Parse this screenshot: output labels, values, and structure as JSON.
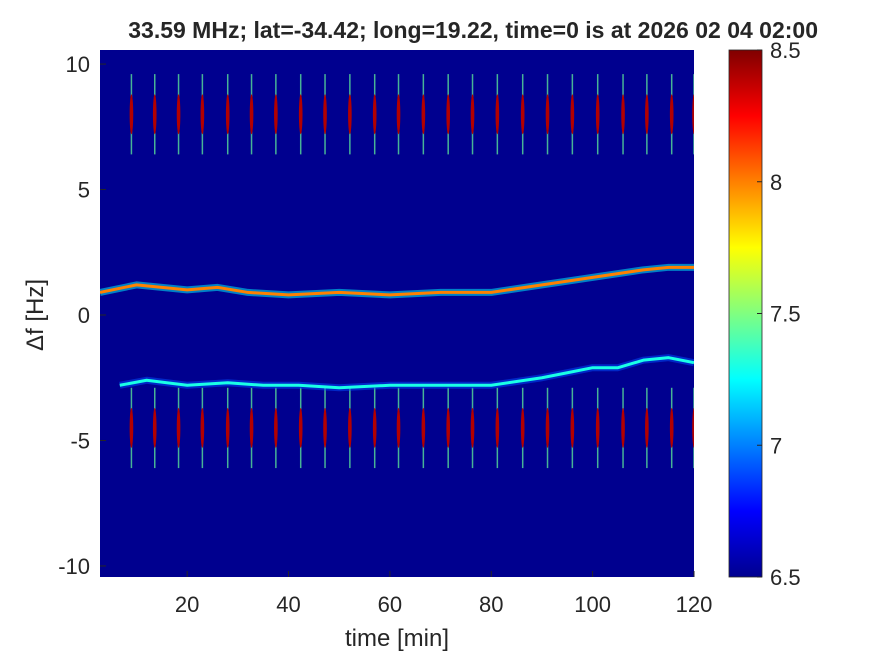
{
  "chart_data": {
    "type": "spectrogram",
    "title": "33.59 MHz;  lat=-34.42; long=19.22, time=0 is at 2026 02 04 02:00",
    "xlabel": "time [min]",
    "ylabel": "Δf [Hz]",
    "xlim": [
      2.8,
      120
    ],
    "ylim": [
      -10.44,
      10.56
    ],
    "xticks": [
      20,
      40,
      60,
      80,
      100,
      120
    ],
    "yticks": [
      -10,
      -5,
      0,
      5,
      10
    ],
    "clim": [
      6.5,
      8.5
    ],
    "cticks": [
      6.5,
      7,
      7.5,
      8,
      8.5
    ],
    "colormap": [
      "#00008f",
      "#0000ff",
      "#0080ff",
      "#00ffff",
      "#80ff80",
      "#ffff00",
      "#ff8000",
      "#ff0000",
      "#800000"
    ],
    "traces": [
      {
        "x": [
          2.8,
          10,
          20,
          26,
          32,
          40,
          50,
          60,
          70,
          80,
          90,
          100,
          110,
          115,
          120
        ],
        "y": [
          0.9,
          1.2,
          1.0,
          1.1,
          0.9,
          0.8,
          0.9,
          0.8,
          0.9,
          0.9,
          1.2,
          1.5,
          1.8,
          1.9,
          1.9
        ],
        "level": 8.0
      },
      {
        "x": [
          6.7,
          12,
          20,
          28,
          35,
          42,
          50,
          60,
          70,
          80,
          90,
          95,
          100,
          105,
          110,
          115,
          120
        ],
        "y": [
          -2.8,
          -2.6,
          -2.8,
          -2.7,
          -2.8,
          -2.8,
          -2.9,
          -2.8,
          -2.8,
          -2.8,
          -2.5,
          -2.3,
          -2.1,
          -2.1,
          -1.8,
          -1.7,
          -1.9
        ],
        "level": 7.3
      }
    ],
    "pulse_times": [
      9,
      13.6,
      18.3,
      23,
      28,
      32.7,
      37.5,
      42.4,
      47.2,
      52.1,
      57,
      61.7,
      66.6,
      71.5,
      76.3,
      81.2,
      86.2,
      91.1,
      96,
      101,
      106,
      110.7,
      115.6,
      120
    ],
    "pulse_freqs": [
      8,
      -4.5
    ],
    "pulse_level": 8.4
  }
}
